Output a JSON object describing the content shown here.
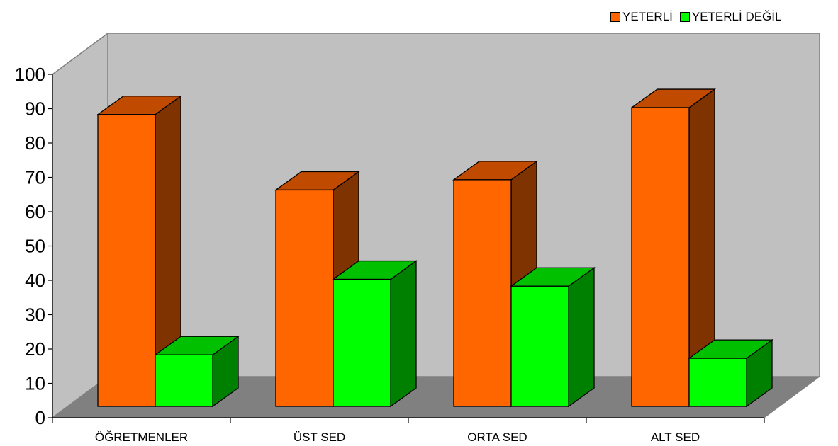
{
  "chart_data": {
    "type": "bar",
    "title": "",
    "xlabel": "",
    "ylabel": "",
    "ylim": [
      0,
      100
    ],
    "yticks": [
      0,
      10,
      20,
      30,
      40,
      50,
      60,
      70,
      80,
      90,
      100
    ],
    "categories": [
      "ÖĞRETMENLER",
      "ÜST SED",
      "ORTA SED",
      "ALT SED"
    ],
    "series": [
      {
        "name": "YETERLİ",
        "values": [
          85,
          63,
          66,
          87
        ]
      },
      {
        "name": "YETERLİ DEĞİL",
        "values": [
          15,
          37,
          35,
          14
        ]
      }
    ],
    "legend_position": "top-right",
    "style_3d": true,
    "colors": {
      "series": [
        "#FF6600",
        "#00FF00"
      ],
      "series_top": [
        "#C04A00",
        "#00C000"
      ],
      "series_side": [
        "#7F3300",
        "#008000"
      ],
      "back_wall": "#C0C0C0",
      "floor": "#808080",
      "gridline": "#000000"
    }
  }
}
